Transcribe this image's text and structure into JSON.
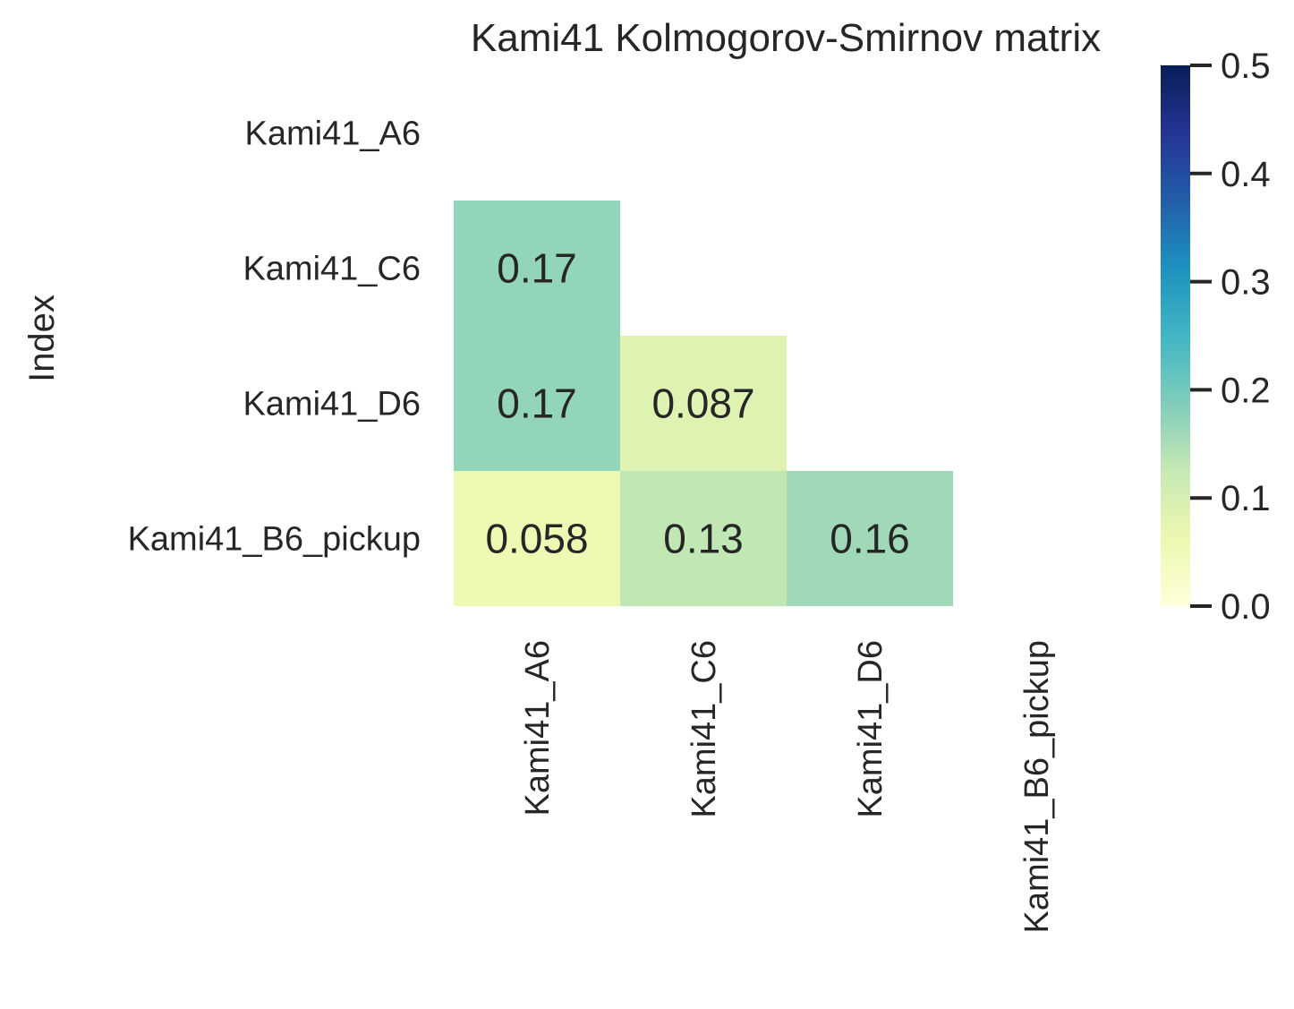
{
  "chart_data": {
    "type": "heatmap",
    "title": "Kami41 Kolmogorov-Smirnov matrix",
    "xlabel": "",
    "ylabel": "Index",
    "row_labels": [
      "Kami41_A6",
      "Kami41_C6",
      "Kami41_D6",
      "Kami41_B6_pickup"
    ],
    "col_labels": [
      "Kami41_A6",
      "Kami41_C6",
      "Kami41_D6",
      "Kami41_B6_pickup"
    ],
    "mask": "upper-triangle-including-diagonal",
    "values": [
      [
        null,
        null,
        null,
        null
      ],
      [
        0.17,
        null,
        null,
        null
      ],
      [
        0.17,
        0.087,
        null,
        null
      ],
      [
        0.058,
        0.13,
        0.16,
        null
      ]
    ],
    "colormap": "YlGnBu",
    "colorbar": {
      "range": [
        0.0,
        0.5
      ],
      "ticks": [
        0.0,
        0.1,
        0.2,
        0.3,
        0.4,
        0.5
      ],
      "tick_labels": [
        "0.0",
        "0.1",
        "0.2",
        "0.3",
        "0.4",
        "0.5"
      ]
    }
  }
}
